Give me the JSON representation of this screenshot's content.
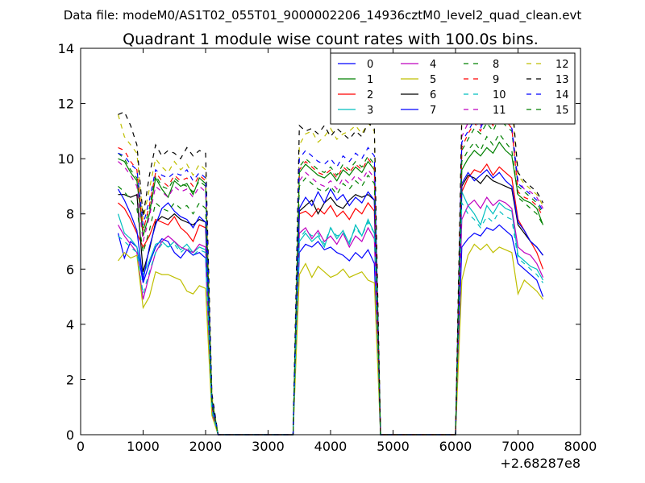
{
  "figure_title": "Data file: modeM0/AS1T02_055T01_9000002206_14936cztM0_level2_quad_clean.evt",
  "chart_data": {
    "type": "line",
    "title": "Quadrant 1 module wise count rates with 100.0s bins.",
    "xlabel": "",
    "ylabel": "",
    "x_offset_label": "+2.68287e8",
    "xlim": [
      0,
      8000
    ],
    "ylim": [
      0,
      14
    ],
    "xticks": [
      0,
      1000,
      2000,
      3000,
      4000,
      5000,
      6000,
      7000,
      8000
    ],
    "yticks": [
      0,
      2,
      4,
      6,
      8,
      10,
      12,
      14
    ],
    "grid": false,
    "legend_position": "top-right",
    "legend_columns": 4,
    "x": [
      600,
      700,
      800,
      900,
      1000,
      1100,
      1200,
      1300,
      1400,
      1500,
      1600,
      1700,
      1800,
      1900,
      2000,
      2100,
      2200,
      2300,
      3300,
      3400,
      3500,
      3600,
      3700,
      3800,
      3900,
      4000,
      4100,
      4200,
      4300,
      4400,
      4500,
      4600,
      4700,
      4800,
      4900,
      5000,
      5900,
      6000,
      6100,
      6200,
      6300,
      6400,
      6500,
      6600,
      6700,
      6800,
      6900,
      7000,
      7100,
      7200,
      7300,
      7400
    ],
    "series": [
      {
        "name": "0",
        "color": "#0000ff",
        "linestyle": "solid",
        "values": [
          7.3,
          6.4,
          7.0,
          6.8,
          5.5,
          6.2,
          6.8,
          7.1,
          7.0,
          6.6,
          6.4,
          6.7,
          6.5,
          6.6,
          6.4,
          0.8,
          0.0,
          0.0,
          0.0,
          0.0,
          6.6,
          6.9,
          6.8,
          7.0,
          6.7,
          6.8,
          6.6,
          6.5,
          6.3,
          6.6,
          6.4,
          6.7,
          6.2,
          0.0,
          0.0,
          0.0,
          0.0,
          0.0,
          6.8,
          7.1,
          7.3,
          7.2,
          7.5,
          7.4,
          7.6,
          7.4,
          7.2,
          6.2,
          6.0,
          5.8,
          5.6,
          5.0
        ]
      },
      {
        "name": "1",
        "color": "#008000",
        "linestyle": "solid",
        "values": [
          10.0,
          9.9,
          9.5,
          9.2,
          7.2,
          8.0,
          9.3,
          8.9,
          8.6,
          9.2,
          9.0,
          9.1,
          8.7,
          9.3,
          9.1,
          1.3,
          0.0,
          0.0,
          0.0,
          0.0,
          9.5,
          9.8,
          9.6,
          9.4,
          9.3,
          9.5,
          9.2,
          9.6,
          9.4,
          9.7,
          9.5,
          9.9,
          9.6,
          0.0,
          0.0,
          0.0,
          0.0,
          0.0,
          9.6,
          10.0,
          10.3,
          10.1,
          10.4,
          10.2,
          10.6,
          10.3,
          10.1,
          8.7,
          8.5,
          8.4,
          8.2,
          7.6
        ]
      },
      {
        "name": "2",
        "color": "#ff0000",
        "linestyle": "solid",
        "values": [
          8.4,
          8.2,
          7.8,
          7.3,
          6.8,
          7.2,
          7.8,
          7.7,
          7.6,
          7.9,
          7.5,
          7.3,
          7.0,
          7.6,
          7.5,
          1.0,
          0.0,
          0.0,
          0.0,
          0.0,
          8.0,
          8.1,
          7.9,
          8.2,
          8.0,
          8.3,
          7.9,
          8.1,
          7.8,
          8.2,
          8.0,
          8.4,
          8.1,
          0.0,
          0.0,
          0.0,
          0.0,
          0.0,
          8.8,
          9.3,
          9.6,
          9.5,
          9.8,
          9.4,
          9.7,
          9.5,
          9.3,
          7.8,
          7.4,
          7.0,
          6.6,
          6.0
        ]
      },
      {
        "name": "3",
        "color": "#00bfbf",
        "linestyle": "solid",
        "values": [
          8.0,
          7.3,
          7.1,
          6.8,
          5.8,
          6.3,
          6.9,
          7.0,
          6.8,
          7.0,
          6.7,
          6.9,
          6.6,
          6.8,
          6.7,
          0.9,
          0.0,
          0.0,
          0.0,
          0.0,
          7.0,
          7.3,
          7.0,
          7.2,
          6.8,
          7.5,
          7.1,
          7.4,
          6.9,
          7.6,
          7.2,
          7.8,
          7.3,
          0.0,
          0.0,
          0.0,
          0.0,
          0.0,
          8.8,
          8.3,
          8.0,
          7.6,
          8.3,
          8.0,
          8.4,
          8.2,
          8.1,
          6.5,
          6.3,
          6.1,
          6.0,
          5.6
        ]
      },
      {
        "name": "4",
        "color": "#bf00bf",
        "linestyle": "solid",
        "values": [
          7.6,
          7.2,
          6.9,
          6.6,
          4.9,
          5.8,
          6.6,
          7.0,
          7.2,
          7.0,
          6.8,
          6.7,
          6.6,
          6.9,
          6.8,
          0.9,
          0.0,
          0.0,
          0.0,
          0.0,
          7.3,
          7.5,
          7.1,
          7.4,
          7.0,
          7.2,
          6.9,
          7.3,
          6.8,
          7.2,
          7.0,
          7.5,
          7.1,
          0.0,
          0.0,
          0.0,
          0.0,
          0.0,
          7.8,
          8.3,
          8.5,
          8.2,
          8.6,
          8.3,
          8.5,
          8.4,
          8.2,
          6.8,
          6.6,
          6.5,
          6.2,
          5.7
        ]
      },
      {
        "name": "5",
        "color": "#bfbf00",
        "linestyle": "solid",
        "values": [
          6.3,
          6.6,
          6.4,
          6.5,
          4.6,
          5.0,
          5.9,
          5.8,
          5.8,
          5.7,
          5.6,
          5.2,
          5.1,
          5.4,
          5.3,
          0.7,
          0.0,
          0.0,
          0.0,
          0.0,
          5.8,
          6.2,
          5.7,
          6.1,
          5.9,
          5.7,
          5.8,
          6.0,
          5.7,
          5.8,
          5.9,
          5.6,
          5.5,
          0.0,
          0.0,
          0.0,
          0.0,
          0.0,
          5.6,
          6.5,
          6.9,
          6.7,
          6.9,
          6.6,
          6.8,
          6.7,
          6.6,
          5.1,
          5.6,
          5.4,
          5.2,
          4.9
        ]
      },
      {
        "name": "6",
        "color": "#000000",
        "linestyle": "solid",
        "values": [
          8.7,
          8.7,
          8.6,
          8.7,
          5.9,
          6.7,
          7.7,
          7.9,
          7.8,
          8.0,
          7.8,
          7.7,
          7.6,
          7.8,
          7.7,
          1.1,
          0.0,
          0.0,
          0.0,
          0.0,
          8.1,
          8.3,
          8.5,
          8.0,
          8.4,
          8.6,
          8.3,
          8.2,
          8.5,
          8.7,
          8.6,
          8.7,
          8.5,
          0.0,
          0.0,
          0.0,
          0.0,
          0.0,
          9.0,
          9.4,
          9.3,
          9.1,
          9.4,
          9.2,
          9.1,
          9.0,
          8.9,
          7.6,
          7.3,
          7.0,
          6.8,
          6.5
        ]
      },
      {
        "name": "7",
        "color": "#0000ff",
        "linestyle": "solid",
        "values": [
          8.9,
          8.5,
          8.0,
          7.4,
          5.6,
          6.8,
          7.6,
          8.2,
          8.4,
          8.1,
          7.9,
          7.8,
          7.5,
          7.9,
          7.7,
          1.2,
          0.0,
          0.0,
          0.0,
          0.0,
          8.2,
          8.6,
          8.3,
          8.8,
          8.4,
          8.9,
          8.5,
          8.7,
          8.3,
          8.6,
          8.4,
          8.8,
          8.5,
          0.0,
          0.0,
          0.0,
          0.0,
          0.0,
          9.1,
          9.5,
          9.2,
          9.4,
          9.6,
          9.3,
          9.5,
          9.2,
          9.0,
          7.7,
          7.4,
          7.0,
          6.8,
          6.5
        ]
      },
      {
        "name": "8",
        "color": "#008000",
        "linestyle": "dashed",
        "values": [
          10.2,
          10.0,
          9.6,
          9.3,
          7.4,
          8.2,
          9.4,
          9.0,
          8.9,
          9.3,
          9.1,
          9.0,
          8.8,
          9.2,
          9.0,
          1.3,
          0.0,
          0.0,
          0.0,
          0.0,
          9.7,
          10.0,
          9.8,
          9.6,
          9.5,
          9.7,
          9.4,
          9.8,
          9.6,
          9.9,
          9.7,
          10.1,
          9.8,
          0.0,
          0.0,
          0.0,
          0.0,
          0.0,
          10.3,
          10.7,
          11.1,
          10.9,
          11.3,
          11.0,
          11.5,
          11.2,
          11.0,
          9.0,
          8.8,
          8.6,
          8.4,
          8.0
        ]
      },
      {
        "name": "9",
        "color": "#ff0000",
        "linestyle": "dashed",
        "values": [
          10.4,
          10.3,
          9.9,
          9.6,
          7.4,
          8.3,
          9.5,
          9.2,
          9.0,
          9.4,
          9.2,
          9.3,
          9.0,
          9.4,
          9.2,
          1.3,
          0.0,
          0.0,
          0.0,
          0.0,
          9.6,
          9.9,
          9.7,
          9.5,
          9.4,
          9.6,
          9.3,
          9.7,
          9.5,
          9.8,
          9.6,
          10.0,
          9.7,
          0.0,
          0.0,
          0.0,
          0.0,
          0.0,
          10.4,
          10.9,
          11.3,
          11.0,
          11.6,
          11.2,
          11.8,
          11.4,
          11.1,
          8.8,
          8.6,
          8.5,
          8.3,
          7.9
        ]
      },
      {
        "name": "10",
        "color": "#00bfbf",
        "linestyle": "dashed",
        "values": [
          7.2,
          7.0,
          6.8,
          6.6,
          5.1,
          5.9,
          6.6,
          6.9,
          6.8,
          6.9,
          6.6,
          6.8,
          6.5,
          6.7,
          6.6,
          0.9,
          0.0,
          0.0,
          0.0,
          0.0,
          7.1,
          7.4,
          7.2,
          7.3,
          6.9,
          7.5,
          7.2,
          7.3,
          7.0,
          7.5,
          7.2,
          7.7,
          7.3,
          0.0,
          0.0,
          0.0,
          0.0,
          0.0,
          8.4,
          8.0,
          7.8,
          7.5,
          7.9,
          7.7,
          8.1,
          7.9,
          7.8,
          6.4,
          6.2,
          6.0,
          5.8,
          5.5
        ]
      },
      {
        "name": "11",
        "color": "#bf00bf",
        "linestyle": "dashed",
        "values": [
          9.9,
          9.7,
          9.4,
          9.0,
          7.0,
          7.9,
          9.0,
          8.8,
          8.6,
          9.0,
          8.8,
          8.9,
          8.6,
          9.0,
          8.8,
          1.2,
          0.0,
          0.0,
          0.0,
          0.0,
          9.2,
          9.5,
          9.3,
          9.1,
          9.0,
          9.2,
          8.9,
          9.3,
          9.1,
          9.4,
          9.2,
          9.6,
          9.3,
          0.0,
          0.0,
          0.0,
          0.0,
          0.0,
          10.8,
          11.3,
          11.6,
          11.2,
          11.7,
          11.3,
          11.8,
          11.5,
          11.2,
          9.2,
          8.9,
          8.8,
          8.6,
          8.2
        ]
      },
      {
        "name": "12",
        "color": "#bfbf00",
        "linestyle": "dashed",
        "values": [
          11.6,
          10.8,
          10.5,
          10.2,
          7.8,
          8.9,
          10.0,
          9.7,
          9.5,
          9.9,
          9.6,
          9.8,
          9.4,
          9.8,
          9.6,
          1.4,
          0.0,
          0.0,
          0.0,
          0.0,
          10.5,
          10.9,
          11.0,
          10.6,
          10.8,
          11.1,
          10.7,
          10.9,
          11.0,
          11.2,
          10.9,
          11.3,
          11.0,
          0.0,
          0.0,
          0.0,
          0.0,
          0.0,
          11.5,
          12.0,
          12.4,
          12.1,
          12.6,
          12.2,
          12.5,
          12.3,
          12.0,
          9.4,
          9.1,
          8.9,
          8.7,
          8.3
        ]
      },
      {
        "name": "13",
        "color": "#000000",
        "linestyle": "dashed",
        "values": [
          11.6,
          11.7,
          11.2,
          10.5,
          7.9,
          9.4,
          10.5,
          10.1,
          10.3,
          10.2,
          10.0,
          10.4,
          10.1,
          10.3,
          10.2,
          1.5,
          0.0,
          0.0,
          0.0,
          0.0,
          11.2,
          11.0,
          11.1,
          10.9,
          11.2,
          10.8,
          11.1,
          10.9,
          10.7,
          11.0,
          10.8,
          11.3,
          11.1,
          0.0,
          0.0,
          0.0,
          0.0,
          0.0,
          11.6,
          12.3,
          13.0,
          12.6,
          13.4,
          12.8,
          12.9,
          12.6,
          12.2,
          9.5,
          9.2,
          9.0,
          8.8,
          8.4
        ]
      },
      {
        "name": "14",
        "color": "#0000ff",
        "linestyle": "dashed",
        "values": [
          10.2,
          10.1,
          9.8,
          9.6,
          7.6,
          8.5,
          9.6,
          9.4,
          9.3,
          9.5,
          9.4,
          9.6,
          9.2,
          9.5,
          9.3,
          1.3,
          0.0,
          0.0,
          0.0,
          0.0,
          10.0,
          10.3,
          10.1,
          9.9,
          9.8,
          10.0,
          9.7,
          10.1,
          9.9,
          10.2,
          10.0,
          10.4,
          10.1,
          0.0,
          0.0,
          0.0,
          0.0,
          0.0,
          10.6,
          11.0,
          11.4,
          11.1,
          11.6,
          11.3,
          11.7,
          11.4,
          11.1,
          9.1,
          8.9,
          8.7,
          8.5,
          8.1
        ]
      },
      {
        "name": "15",
        "color": "#008000",
        "linestyle": "dashed",
        "values": [
          9.0,
          8.8,
          8.5,
          8.2,
          6.6,
          7.4,
          8.4,
          8.2,
          8.1,
          8.4,
          8.2,
          8.3,
          8.0,
          8.4,
          8.2,
          1.2,
          0.0,
          0.0,
          0.0,
          0.0,
          9.0,
          9.3,
          9.1,
          8.9,
          8.8,
          9.0,
          8.7,
          9.1,
          8.9,
          9.2,
          9.0,
          9.4,
          9.1,
          0.0,
          0.0,
          0.0,
          0.0,
          0.0,
          9.9,
          10.3,
          10.6,
          10.3,
          10.8,
          10.5,
          10.9,
          10.6,
          10.3,
          8.6,
          8.4,
          8.2,
          8.0,
          7.6
        ]
      }
    ]
  }
}
